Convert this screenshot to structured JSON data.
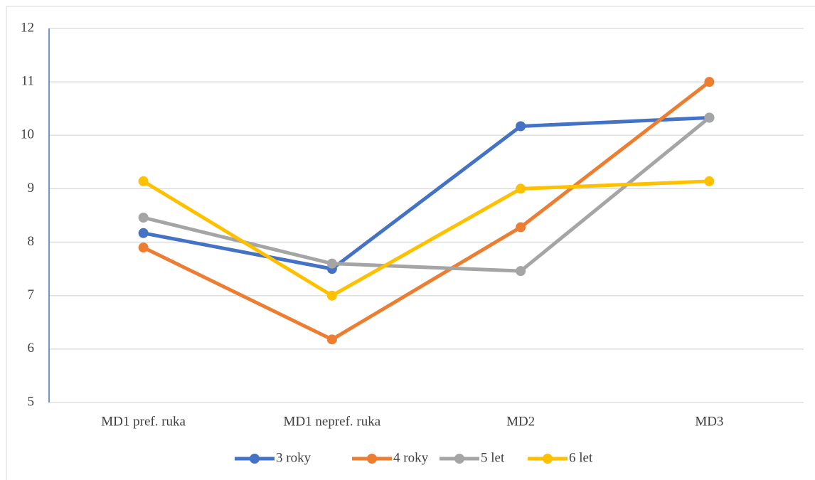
{
  "chart_data": {
    "type": "line",
    "categories": [
      "MD1 pref. ruka",
      "MD1 nepref. ruka",
      "MD2",
      "MD3"
    ],
    "series": [
      {
        "name": "3 roky",
        "color": "#4472c4",
        "values": [
          8.17,
          7.5,
          10.17,
          10.33
        ]
      },
      {
        "name": "4 roky",
        "color": "#ed7d31",
        "values": [
          7.9,
          6.18,
          8.28,
          11
        ]
      },
      {
        "name": "5 let",
        "color": "#a5a5a5",
        "values": [
          8.46,
          7.6,
          7.46,
          10.33
        ]
      },
      {
        "name": "6 let",
        "color": "#ffc000",
        "values": [
          9.14,
          7,
          9,
          9.14
        ]
      }
    ],
    "ylim": [
      5,
      12
    ],
    "yticks": [
      5,
      6,
      7,
      8,
      9,
      10,
      11,
      12
    ],
    "grid": true,
    "legend": "bottom"
  }
}
